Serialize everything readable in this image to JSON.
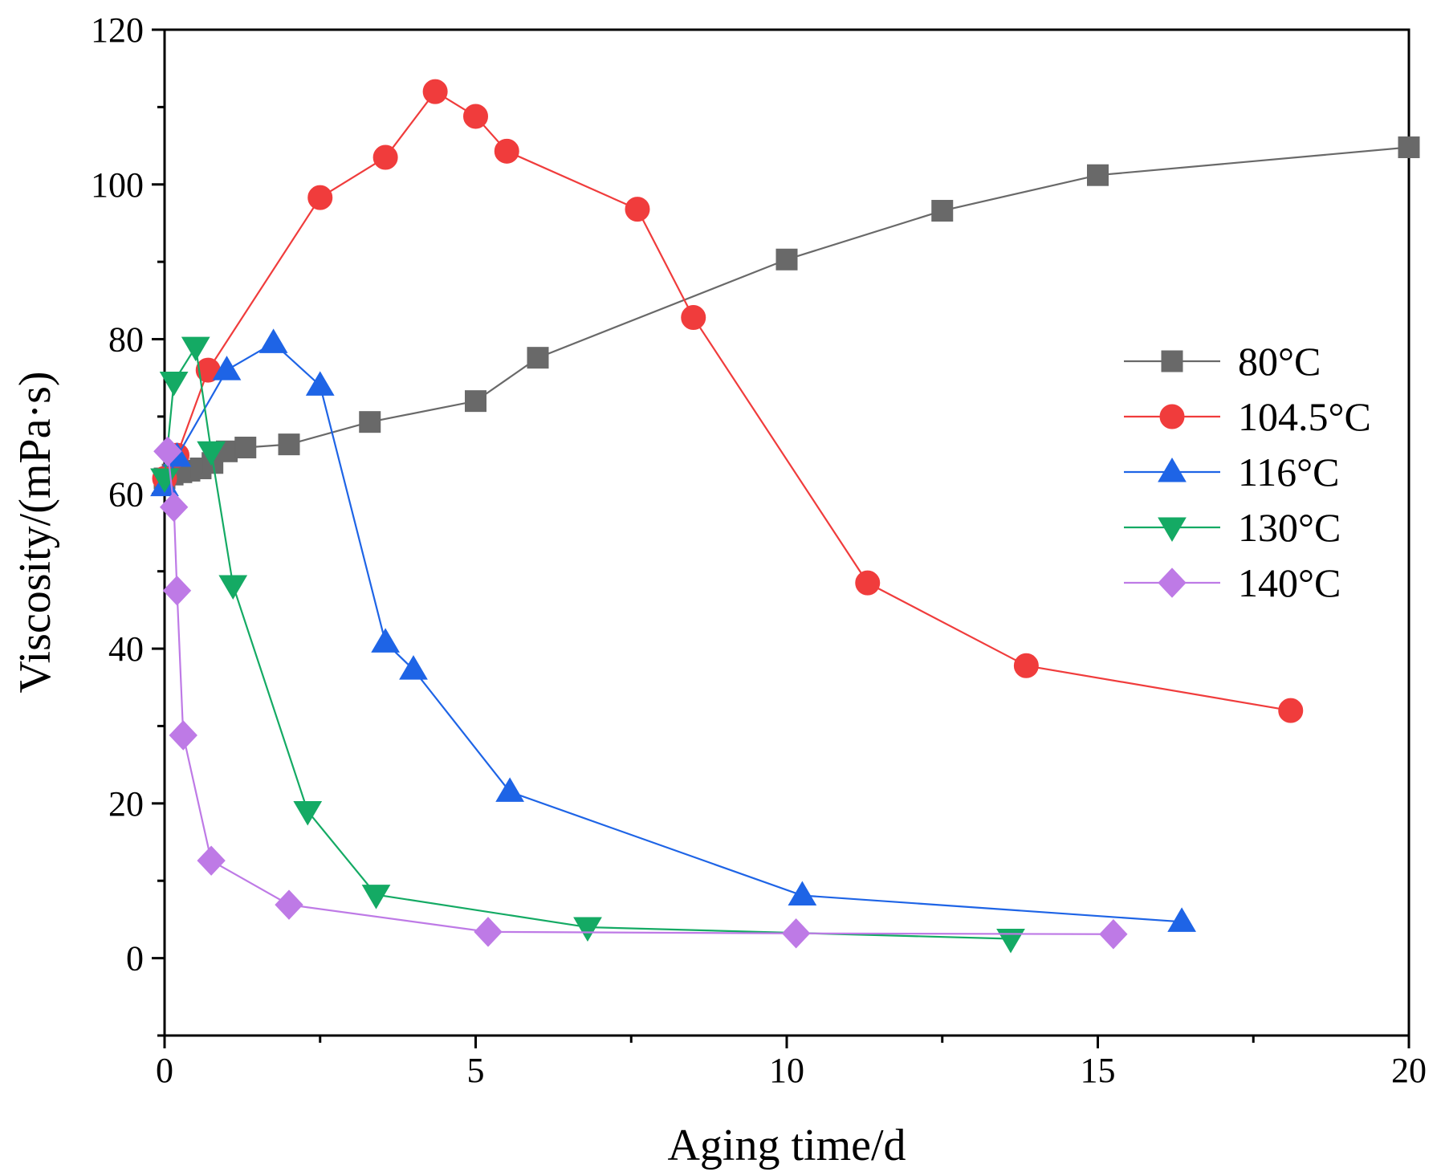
{
  "chart_data": {
    "type": "line",
    "title": "",
    "xlabel": "Aging time/d",
    "ylabel": "Viscosity/(mPa·s)",
    "xlim": [
      0,
      20
    ],
    "ylim": [
      -10,
      120
    ],
    "xticks": [
      0,
      5,
      10,
      15,
      20
    ],
    "xtick_labels": [
      "0",
      "5",
      "10",
      "15",
      "20"
    ],
    "yticks": [
      0,
      20,
      40,
      60,
      80,
      100,
      120
    ],
    "ytick_labels": [
      "0",
      "20",
      "40",
      "60",
      "80",
      "100",
      "120"
    ],
    "grid": false,
    "legend_position": "right-middle",
    "series": [
      {
        "name": "80°C",
        "color": "#696969",
        "marker": "square",
        "x": [
          0,
          0.13,
          0.27,
          0.4,
          0.58,
          0.77,
          1.0,
          1.3,
          2.0,
          3.3,
          5.0,
          6.0,
          10.0,
          12.5,
          15.0,
          20.0
        ],
        "y": [
          62,
          62.5,
          62.8,
          63,
          63.3,
          64,
          65.5,
          66,
          66.4,
          69.3,
          72,
          77.6,
          90.3,
          96.6,
          101.2,
          104.8
        ]
      },
      {
        "name": "104.5°C",
        "color": "#f03c3c",
        "marker": "circle",
        "x": [
          0,
          0.2,
          0.7,
          2.5,
          3.55,
          4.35,
          5.0,
          5.5,
          7.6,
          8.5,
          11.3,
          13.85,
          18.1
        ],
        "y": [
          62,
          65,
          76,
          98.3,
          103.5,
          112,
          108.8,
          104.3,
          96.8,
          82.8,
          48.5,
          37.8,
          32
        ]
      },
      {
        "name": "116°C",
        "color": "#1e64e6",
        "marker": "triangle-up",
        "x": [
          0,
          0.2,
          1.0,
          1.75,
          2.5,
          3.55,
          4.0,
          5.55,
          10.25,
          16.35
        ],
        "y": [
          61,
          64.8,
          76,
          79.5,
          74,
          40.8,
          37.3,
          21.5,
          8.1,
          4.7
        ]
      },
      {
        "name": "130°C",
        "color": "#14aa64",
        "marker": "triangle-down",
        "x": [
          0,
          0.15,
          0.5,
          0.75,
          1.1,
          2.3,
          3.4,
          6.8,
          13.6
        ],
        "y": [
          62,
          74.5,
          79,
          65.5,
          48.2,
          19,
          8.2,
          4,
          2.5
        ]
      },
      {
        "name": "140°C",
        "color": "#be7ae6",
        "marker": "diamond",
        "x": [
          0.05,
          0.15,
          0.2,
          0.3,
          0.75,
          2.0,
          5.2,
          10.15,
          15.25
        ],
        "y": [
          65.5,
          58.3,
          47.5,
          28.8,
          12.6,
          6.9,
          3.4,
          3.2,
          3.1
        ]
      }
    ]
  }
}
